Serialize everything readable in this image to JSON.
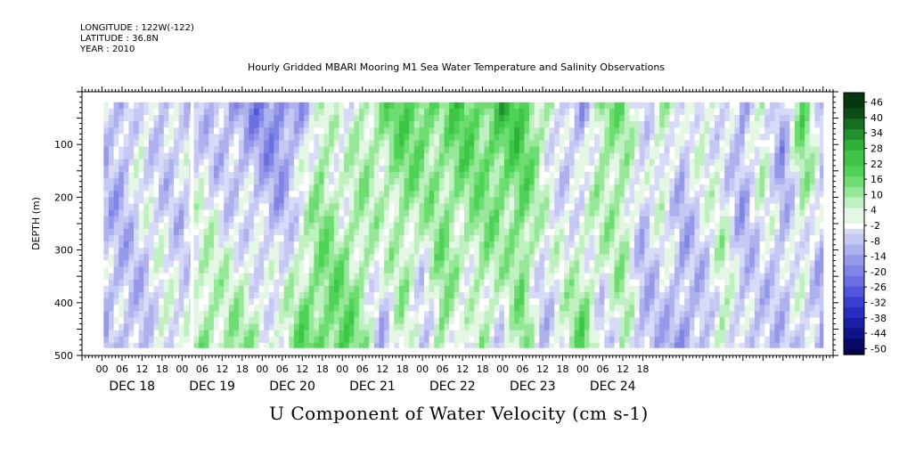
{
  "header": {
    "longitude": "LONGITUDE : 122W(-122)",
    "latitude": "LATITUDE : 36.8N",
    "year": "YEAR : 2010"
  },
  "title": "Hourly Gridded MBARI Mooring M1 Sea Water Temperature and Salinity Observations",
  "subtitle": "U Component of Water Velocity (cm s-1)",
  "chart_data": {
    "type": "heatmap",
    "xlabel": "",
    "ylabel": "DEPTH (m)",
    "ylim": [
      500,
      0
    ],
    "y_ticks": [
      100,
      200,
      300,
      400,
      500
    ],
    "x_hour_ticks": [
      "00",
      "06",
      "12",
      "18",
      "00",
      "06",
      "12",
      "18",
      "00",
      "06",
      "12",
      "18",
      "00",
      "06",
      "12",
      "18",
      "00",
      "06",
      "12",
      "18",
      "00",
      "06",
      "12",
      "18",
      "00",
      "06",
      "12",
      "18"
    ],
    "x_day_labels": [
      "DEC 18",
      "DEC 19",
      "DEC 20",
      "DEC 21",
      "DEC 22",
      "DEC 23",
      "DEC 24"
    ],
    "data_depth_range": [
      20,
      485
    ],
    "data_time_start_hour": 0.5,
    "data_gap_hours": [
      26.5,
      27.5
    ],
    "colorbar_labels": [
      "46",
      "40",
      "34",
      "28",
      "22",
      "16",
      "10",
      "4",
      "-2",
      "-8",
      "-14",
      "-20",
      "-26",
      "-32",
      "-38",
      "-44",
      "-50"
    ],
    "colorbar_min": -50,
    "colorbar_max": 50,
    "colors_positive": [
      "#e4f7e4",
      "#bff0c0",
      "#96e898",
      "#6ddd72",
      "#4fd357",
      "#3ec446",
      "#2fae3a",
      "#238f2e",
      "#176e22",
      "#0d4e17",
      "#063810"
    ],
    "colors_negative": [
      "#d7dbf8",
      "#c4c8f3",
      "#adb1ee",
      "#9599e8",
      "#8084e4",
      "#6b6fe0",
      "#5055db",
      "#3a3fd0",
      "#282dbd",
      "#1a1ea3",
      "#0f1288",
      "#070a66",
      "#02044c"
    ],
    "grid_columns": [
      {
        "hour": 0.5,
        "top": -6,
        "bottom": -8
      },
      {
        "hour": 6,
        "top": -10,
        "bottom": -6
      },
      {
        "hour": 12,
        "top": 4,
        "bottom": -10
      },
      {
        "hour": 18,
        "top": -8,
        "bottom": 6
      },
      {
        "hour": 24,
        "top": -4,
        "bottom": -6
      },
      {
        "hour": 30,
        "top": -6,
        "bottom": 14
      },
      {
        "hour": 36,
        "top": -10,
        "bottom": 10
      },
      {
        "hour": 42,
        "top": -14,
        "bottom": 12
      },
      {
        "hour": 48,
        "top": -16,
        "bottom": 6
      },
      {
        "hour": 54,
        "top": -18,
        "bottom": 4
      },
      {
        "hour": 60,
        "top": -10,
        "bottom": 18
      },
      {
        "hour": 66,
        "top": 10,
        "bottom": 16
      },
      {
        "hour": 72,
        "top": -4,
        "bottom": 20
      },
      {
        "hour": 78,
        "top": 8,
        "bottom": 10
      },
      {
        "hour": 84,
        "top": 14,
        "bottom": -8
      },
      {
        "hour": 90,
        "top": 18,
        "bottom": 6
      },
      {
        "hour": 96,
        "top": 20,
        "bottom": -10
      },
      {
        "hour": 102,
        "top": 12,
        "bottom": 14
      },
      {
        "hour": 108,
        "top": 22,
        "bottom": -6
      },
      {
        "hour": 114,
        "top": 16,
        "bottom": 8
      },
      {
        "hour": 120,
        "top": 24,
        "bottom": -4
      },
      {
        "hour": 126,
        "top": 20,
        "bottom": 12
      },
      {
        "hour": 132,
        "top": 10,
        "bottom": -8
      },
      {
        "hour": 138,
        "top": -6,
        "bottom": 6
      },
      {
        "hour": 144,
        "top": -12,
        "bottom": 18
      },
      {
        "hour": 150,
        "top": 16,
        "bottom": -6
      },
      {
        "hour": 156,
        "top": 12,
        "bottom": 8
      },
      {
        "hour": 162,
        "top": -4,
        "bottom": -10
      },
      {
        "hour": 168,
        "top": 10,
        "bottom": -8
      },
      {
        "hour": 174,
        "top": -6,
        "bottom": -12
      },
      {
        "hour": 180,
        "top": 6,
        "bottom": -10
      },
      {
        "hour": 186,
        "top": -2,
        "bottom": 10
      },
      {
        "hour": 192,
        "top": -12,
        "bottom": -6
      },
      {
        "hour": 198,
        "top": 10,
        "bottom": -8
      },
      {
        "hour": 204,
        "top": -14,
        "bottom": -4
      },
      {
        "hour": 210,
        "top": 18,
        "bottom": -6
      },
      {
        "hour": 216,
        "top": -4,
        "bottom": -10
      }
    ]
  }
}
